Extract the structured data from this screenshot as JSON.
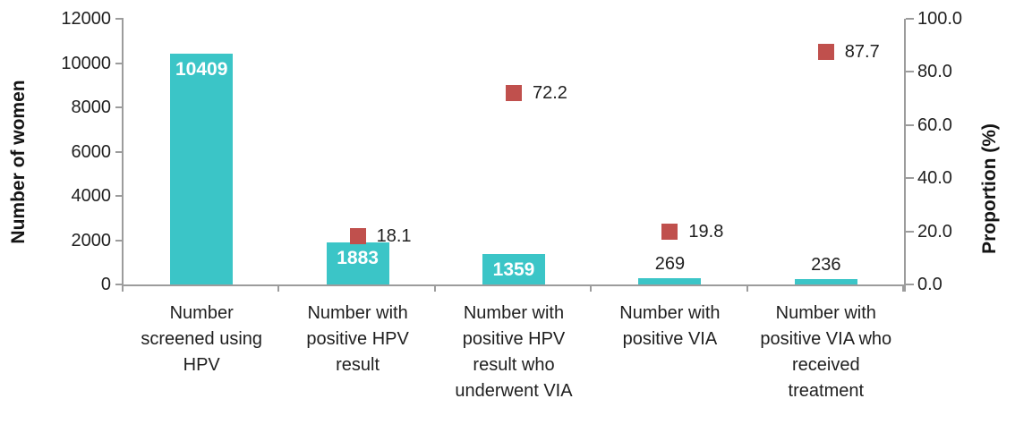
{
  "chart_data": {
    "type": "bar",
    "subtype": "combo-bar-with-scatter-percentage",
    "title": "",
    "grid": false,
    "legend": "none",
    "background_color": "#ffffff",
    "axis_line_color": "#9c9c9c",
    "bar_color": "#3bc5c7",
    "marker_color": "#c0504d",
    "left_axis": {
      "title": "Number of women",
      "min": 0,
      "max": 12000,
      "tick_labels": [
        "0",
        "2000",
        "4000",
        "6000",
        "8000",
        "10000",
        "12000"
      ]
    },
    "right_axis": {
      "title": "Proportion (%)",
      "min": 0,
      "max": 100,
      "tick_labels": [
        "0.0",
        "20.0",
        "40.0",
        "60.0",
        "80.0",
        "100.0"
      ]
    },
    "categories": [
      {
        "label": "Number\nscreened using\nHPV",
        "count": 10409,
        "count_label": "10409",
        "count_label_inside": true,
        "proportion": null,
        "proportion_label": null
      },
      {
        "label": "Number with\npositive HPV\nresult",
        "count": 1883,
        "count_label": "1883",
        "count_label_inside": true,
        "proportion": 18.1,
        "proportion_label": "18.1"
      },
      {
        "label": "Number with\npositive HPV\nresult who\nunderwent VIA",
        "count": 1359,
        "count_label": "1359",
        "count_label_inside": true,
        "proportion": 72.2,
        "proportion_label": "72.2"
      },
      {
        "label": "Number with\npositive VIA",
        "count": 269,
        "count_label": "269",
        "count_label_inside": false,
        "proportion": 19.8,
        "proportion_label": "19.8"
      },
      {
        "label": "Number with\npositive VIA who\nreceived\ntreatment",
        "count": 236,
        "count_label": "236",
        "count_label_inside": false,
        "proportion": 87.7,
        "proportion_label": "87.7"
      }
    ]
  }
}
